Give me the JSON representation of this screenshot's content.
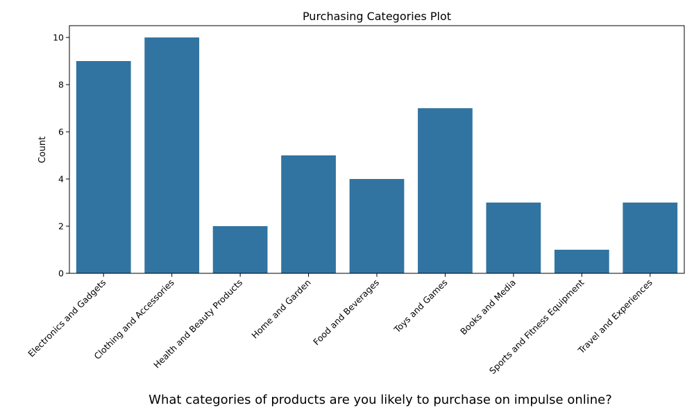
{
  "chart_data": {
    "type": "bar",
    "title": "Purchasing Categories Plot",
    "xlabel": "What categories of products are you likely to purchase on impulse online?",
    "ylabel": "Count",
    "categories": [
      "Electronics and Gadgets",
      "Clothing and Accessories",
      "Health and Beauty Products",
      "Home and Garden",
      "Food and Beverages",
      "Toys and Games",
      "Books and Media",
      "Sports and Fitness Equipment",
      "Travel and Experiences"
    ],
    "values": [
      9,
      10,
      2,
      5,
      4,
      7,
      3,
      1,
      3
    ],
    "ylim": [
      0,
      10.5
    ],
    "yticks": [
      0,
      2,
      4,
      6,
      8,
      10
    ],
    "bar_color": "#3274a1",
    "grid": false,
    "legend": "none"
  }
}
